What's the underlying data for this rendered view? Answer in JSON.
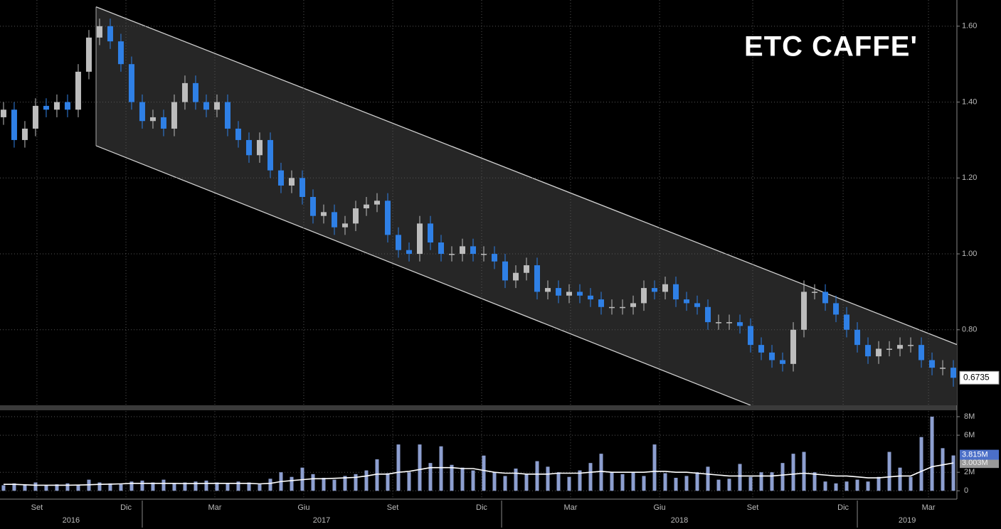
{
  "chart_data": {
    "type": "candlestick",
    "title": "ETC CAFFE'",
    "xlim": [
      -0.33,
      89.33
    ],
    "xticks": [
      {
        "value": 3.13,
        "label": "Set"
      },
      {
        "value": 11.47,
        "label": "Dic"
      },
      {
        "value": 19.8,
        "label": "Mar"
      },
      {
        "value": 28.13,
        "label": "Giu"
      },
      {
        "value": 36.47,
        "label": "Set"
      },
      {
        "value": 44.8,
        "label": "Dic"
      },
      {
        "value": 53.13,
        "label": "Mar"
      },
      {
        "value": 61.47,
        "label": "Giu"
      },
      {
        "value": 70.2,
        "label": "Set"
      },
      {
        "value": 78.67,
        "label": "Dic"
      },
      {
        "value": 86.67,
        "label": "Mar"
      }
    ],
    "years": [
      {
        "value": 6.33,
        "label": "2016"
      },
      {
        "value": 29.8,
        "label": "2017"
      },
      {
        "value": 63.33,
        "label": "2018"
      },
      {
        "value": 84.67,
        "label": "2019"
      }
    ],
    "year_breaks": [
      13,
      46.67,
      80
    ],
    "ylim": [
      0.601,
      1.669
    ],
    "yticks": [
      {
        "value": 0.8,
        "label": "0.80"
      },
      {
        "value": 1.0,
        "label": "1.00"
      },
      {
        "value": 1.2,
        "label": "1.20"
      },
      {
        "value": 1.4,
        "label": "1.40"
      },
      {
        "value": 1.6,
        "label": "1.60"
      }
    ],
    "grid": true,
    "up_color": "#bdbdbd",
    "down_color": "#2f80e6",
    "open": [
      1.36,
      1.38,
      1.3,
      1.33,
      1.39,
      1.38,
      1.4,
      1.38,
      1.48,
      1.57,
      1.6,
      1.56,
      1.5,
      1.4,
      1.35,
      1.36,
      1.33,
      1.4,
      1.45,
      1.4,
      1.38,
      1.4,
      1.33,
      1.3,
      1.26,
      1.3,
      1.22,
      1.18,
      1.2,
      1.15,
      1.1,
      1.11,
      1.07,
      1.08,
      1.12,
      1.13,
      1.14,
      1.05,
      1.01,
      1.0,
      1.08,
      1.03,
      1.0,
      1.0,
      1.02,
      1.0,
      1.0,
      0.98,
      0.93,
      0.95,
      0.97,
      0.9,
      0.91,
      0.89,
      0.9,
      0.89,
      0.88,
      0.86,
      0.86,
      0.86,
      0.87,
      0.91,
      0.9,
      0.92,
      0.88,
      0.87,
      0.86,
      0.82,
      0.82,
      0.82,
      0.81,
      0.76,
      0.74,
      0.72,
      0.71,
      0.8,
      0.9,
      0.9,
      0.87,
      0.84,
      0.8,
      0.76,
      0.73,
      0.75,
      0.75,
      0.76,
      0.76,
      0.72,
      0.7,
      0.7
    ],
    "high": [
      1.4,
      1.4,
      1.35,
      1.41,
      1.41,
      1.42,
      1.42,
      1.5,
      1.59,
      1.62,
      1.62,
      1.58,
      1.52,
      1.42,
      1.38,
      1.38,
      1.42,
      1.47,
      1.47,
      1.42,
      1.42,
      1.42,
      1.35,
      1.32,
      1.32,
      1.32,
      1.24,
      1.22,
      1.22,
      1.17,
      1.13,
      1.13,
      1.1,
      1.14,
      1.15,
      1.16,
      1.16,
      1.07,
      1.03,
      1.1,
      1.1,
      1.05,
      1.02,
      1.04,
      1.04,
      1.02,
      1.02,
      1.0,
      0.97,
      0.99,
      0.99,
      0.93,
      0.93,
      0.92,
      0.92,
      0.91,
      0.9,
      0.88,
      0.88,
      0.89,
      0.93,
      0.93,
      0.94,
      0.94,
      0.9,
      0.89,
      0.88,
      0.84,
      0.84,
      0.84,
      0.83,
      0.78,
      0.76,
      0.74,
      0.82,
      0.93,
      0.92,
      0.92,
      0.89,
      0.86,
      0.82,
      0.78,
      0.77,
      0.77,
      0.78,
      0.78,
      0.78,
      0.74,
      0.72,
      0.72
    ],
    "low": [
      1.34,
      1.28,
      1.28,
      1.31,
      1.36,
      1.36,
      1.36,
      1.36,
      1.46,
      1.55,
      1.54,
      1.48,
      1.38,
      1.33,
      1.33,
      1.31,
      1.31,
      1.38,
      1.38,
      1.36,
      1.36,
      1.31,
      1.28,
      1.24,
      1.24,
      1.2,
      1.16,
      1.16,
      1.13,
      1.08,
      1.08,
      1.05,
      1.05,
      1.06,
      1.1,
      1.11,
      1.03,
      0.99,
      0.98,
      0.98,
      1.01,
      0.98,
      0.98,
      0.98,
      0.98,
      0.98,
      0.96,
      0.91,
      0.91,
      0.93,
      0.88,
      0.88,
      0.87,
      0.87,
      0.87,
      0.86,
      0.84,
      0.84,
      0.84,
      0.84,
      0.85,
      0.88,
      0.88,
      0.86,
      0.85,
      0.84,
      0.8,
      0.8,
      0.8,
      0.79,
      0.74,
      0.72,
      0.7,
      0.69,
      0.69,
      0.78,
      0.88,
      0.85,
      0.82,
      0.78,
      0.74,
      0.71,
      0.71,
      0.73,
      0.73,
      0.74,
      0.7,
      0.68,
      0.68,
      0.65
    ],
    "close": [
      1.38,
      1.3,
      1.33,
      1.39,
      1.38,
      1.4,
      1.38,
      1.48,
      1.57,
      1.6,
      1.56,
      1.5,
      1.4,
      1.35,
      1.36,
      1.33,
      1.4,
      1.45,
      1.4,
      1.38,
      1.4,
      1.33,
      1.3,
      1.26,
      1.3,
      1.22,
      1.18,
      1.2,
      1.15,
      1.1,
      1.11,
      1.07,
      1.08,
      1.12,
      1.13,
      1.14,
      1.05,
      1.01,
      1.0,
      1.08,
      1.03,
      1.0,
      1.0,
      1.02,
      1.0,
      1.0,
      0.98,
      0.93,
      0.95,
      0.97,
      0.9,
      0.91,
      0.89,
      0.9,
      0.89,
      0.88,
      0.86,
      0.86,
      0.86,
      0.87,
      0.91,
      0.9,
      0.92,
      0.88,
      0.87,
      0.86,
      0.82,
      0.82,
      0.82,
      0.81,
      0.76,
      0.74,
      0.72,
      0.71,
      0.8,
      0.9,
      0.9,
      0.87,
      0.84,
      0.8,
      0.76,
      0.73,
      0.75,
      0.75,
      0.76,
      0.76,
      0.72,
      0.7,
      0.7,
      0.6735
    ],
    "channel": {
      "upper": [
        [
          8.67,
          1.651
        ],
        [
          89.33,
          0.761
        ]
      ],
      "lower": [
        [
          8.67,
          1.285
        ],
        [
          70,
          0.601
        ]
      ]
    },
    "volume": {
      "color": "#8d9fd0",
      "ma_color": "#ffffff",
      "ylim": [
        -0.9,
        8.6
      ],
      "yticks": [
        0,
        {
          "value": 2,
          "label": "2M"
        },
        {
          "value": 6,
          "label": "6M"
        },
        {
          "value": 8,
          "label": "8M"
        }
      ],
      "values": [
        0.6,
        0.8,
        0.7,
        0.9,
        0.6,
        0.7,
        0.8,
        0.6,
        1.2,
        0.9,
        0.8,
        0.7,
        1.0,
        1.1,
        0.9,
        1.2,
        0.8,
        0.9,
        1.0,
        1.1,
        0.9,
        0.8,
        1.0,
        0.9,
        0.7,
        1.3,
        2.0,
        1.5,
        2.5,
        1.8,
        1.4,
        1.2,
        1.6,
        1.8,
        2.2,
        3.4,
        1.9,
        5.0,
        2.0,
        5.0,
        3.0,
        4.8,
        2.8,
        2.5,
        2.2,
        3.8,
        2.0,
        1.6,
        2.4,
        1.8,
        3.2,
        2.6,
        2.0,
        1.5,
        2.2,
        3.0,
        4.0,
        2.0,
        1.8,
        2.0,
        1.6,
        5.0,
        1.9,
        1.4,
        1.6,
        2.0,
        2.6,
        1.2,
        1.3,
        2.9,
        1.5,
        2.0,
        2.0,
        3.0,
        4.0,
        4.2,
        2.0,
        1.0,
        0.8,
        1.0,
        1.2,
        1.0,
        1.5,
        4.2,
        2.5,
        1.5,
        5.8,
        8.0,
        4.6,
        3.815
      ],
      "last_label": "3.815M",
      "ma": [
        0.7,
        0.7,
        0.65,
        0.6,
        0.6,
        0.6,
        0.6,
        0.62,
        0.65,
        0.7,
        0.72,
        0.75,
        0.8,
        0.8,
        0.8,
        0.8,
        0.8,
        0.78,
        0.78,
        0.8,
        0.8,
        0.8,
        0.8,
        0.8,
        0.75,
        0.8,
        1.0,
        1.1,
        1.2,
        1.3,
        1.3,
        1.35,
        1.4,
        1.45,
        1.6,
        1.8,
        1.8,
        2.0,
        2.1,
        2.3,
        2.5,
        2.5,
        2.5,
        2.4,
        2.4,
        2.2,
        2.0,
        1.9,
        1.9,
        1.8,
        1.8,
        1.8,
        1.9,
        1.9,
        1.9,
        2.0,
        2.1,
        2.0,
        2.0,
        2.0,
        2.0,
        2.1,
        2.1,
        2.0,
        2.0,
        1.9,
        1.8,
        1.7,
        1.6,
        1.6,
        1.6,
        1.6,
        1.6,
        1.7,
        1.8,
        1.9,
        1.8,
        1.7,
        1.6,
        1.6,
        1.5,
        1.4,
        1.4,
        1.5,
        1.6,
        1.6,
        2.1,
        2.6,
        2.8,
        3.003
      ],
      "ma_last_label": "3.003M"
    }
  }
}
